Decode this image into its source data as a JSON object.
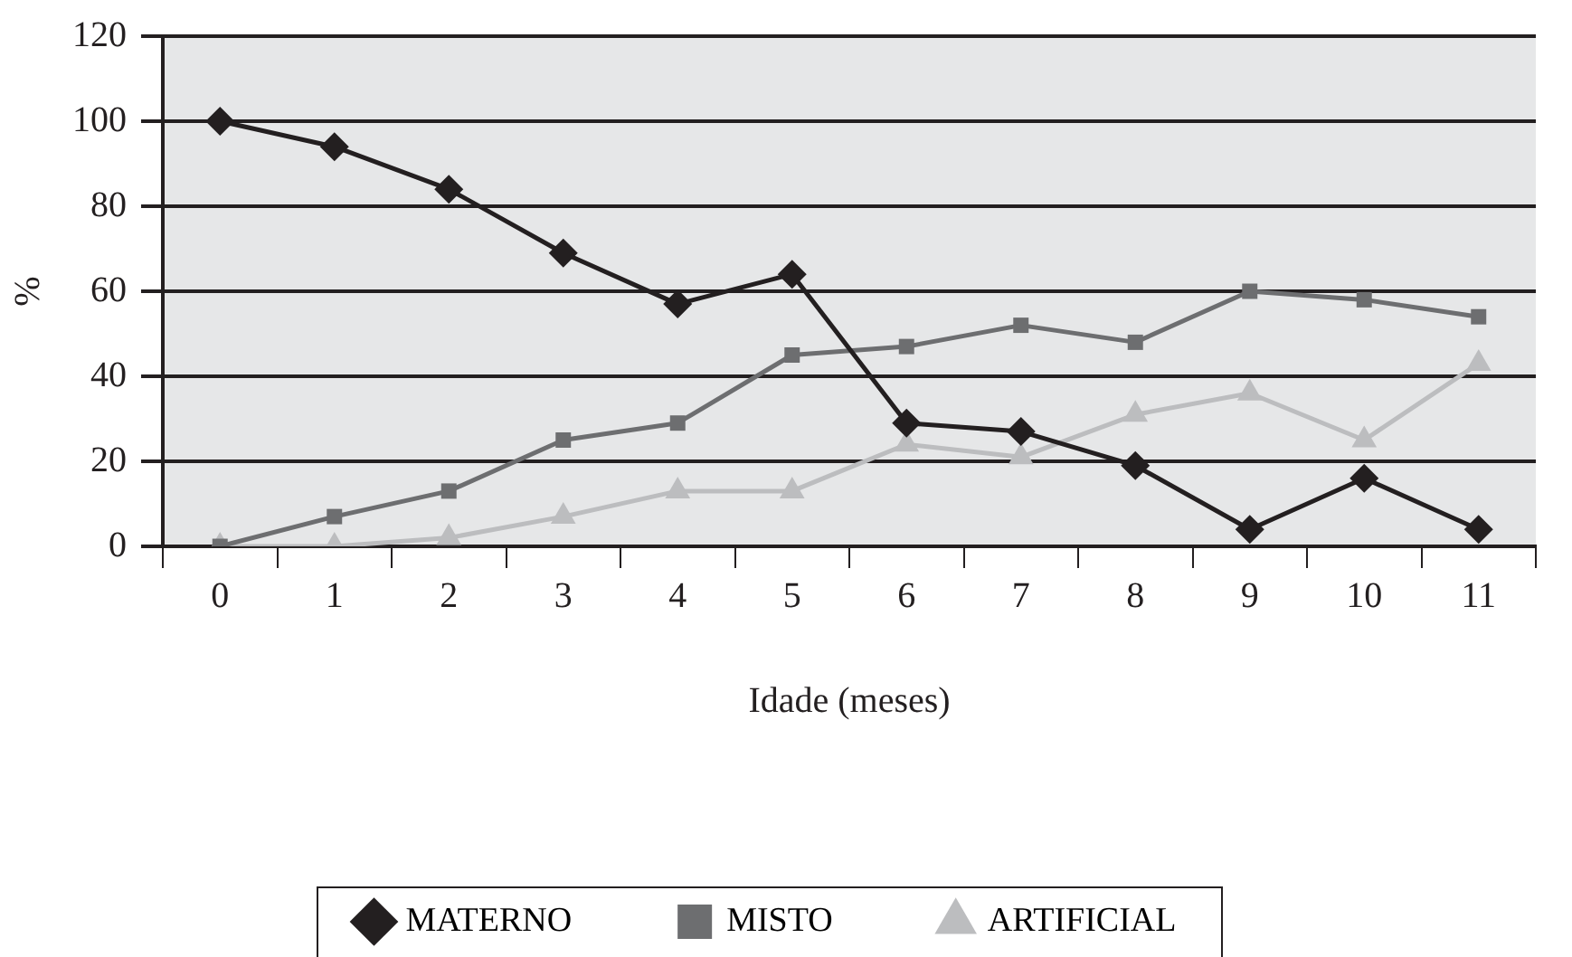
{
  "chart_data": {
    "type": "line",
    "xlabel": "Idade (meses)",
    "ylabel": "%",
    "categories": [
      "0",
      "1",
      "2",
      "3",
      "4",
      "5",
      "6",
      "7",
      "8",
      "9",
      "10",
      "11"
    ],
    "ylim": [
      0,
      120
    ],
    "yticks": [
      0,
      20,
      40,
      60,
      80,
      100,
      120
    ],
    "grid": "y",
    "legend": "bottom",
    "line_style": "solid",
    "series": [
      {
        "name": "MATERNO",
        "color": "#231f20",
        "marker": "diamond",
        "values": [
          100,
          94,
          84,
          69,
          57,
          64,
          29,
          27,
          19,
          4,
          16,
          4
        ]
      },
      {
        "name": "MISTO",
        "color": "#6d6e70",
        "marker": "square",
        "values": [
          0,
          7,
          13,
          25,
          29,
          45,
          47,
          52,
          48,
          60,
          58,
          54
        ]
      },
      {
        "name": "ARTIFICIAL",
        "color": "#bcbdbf",
        "marker": "triangle",
        "values": [
          0,
          0,
          2,
          7,
          13,
          13,
          24,
          21,
          31,
          36,
          25,
          43
        ]
      }
    ]
  }
}
